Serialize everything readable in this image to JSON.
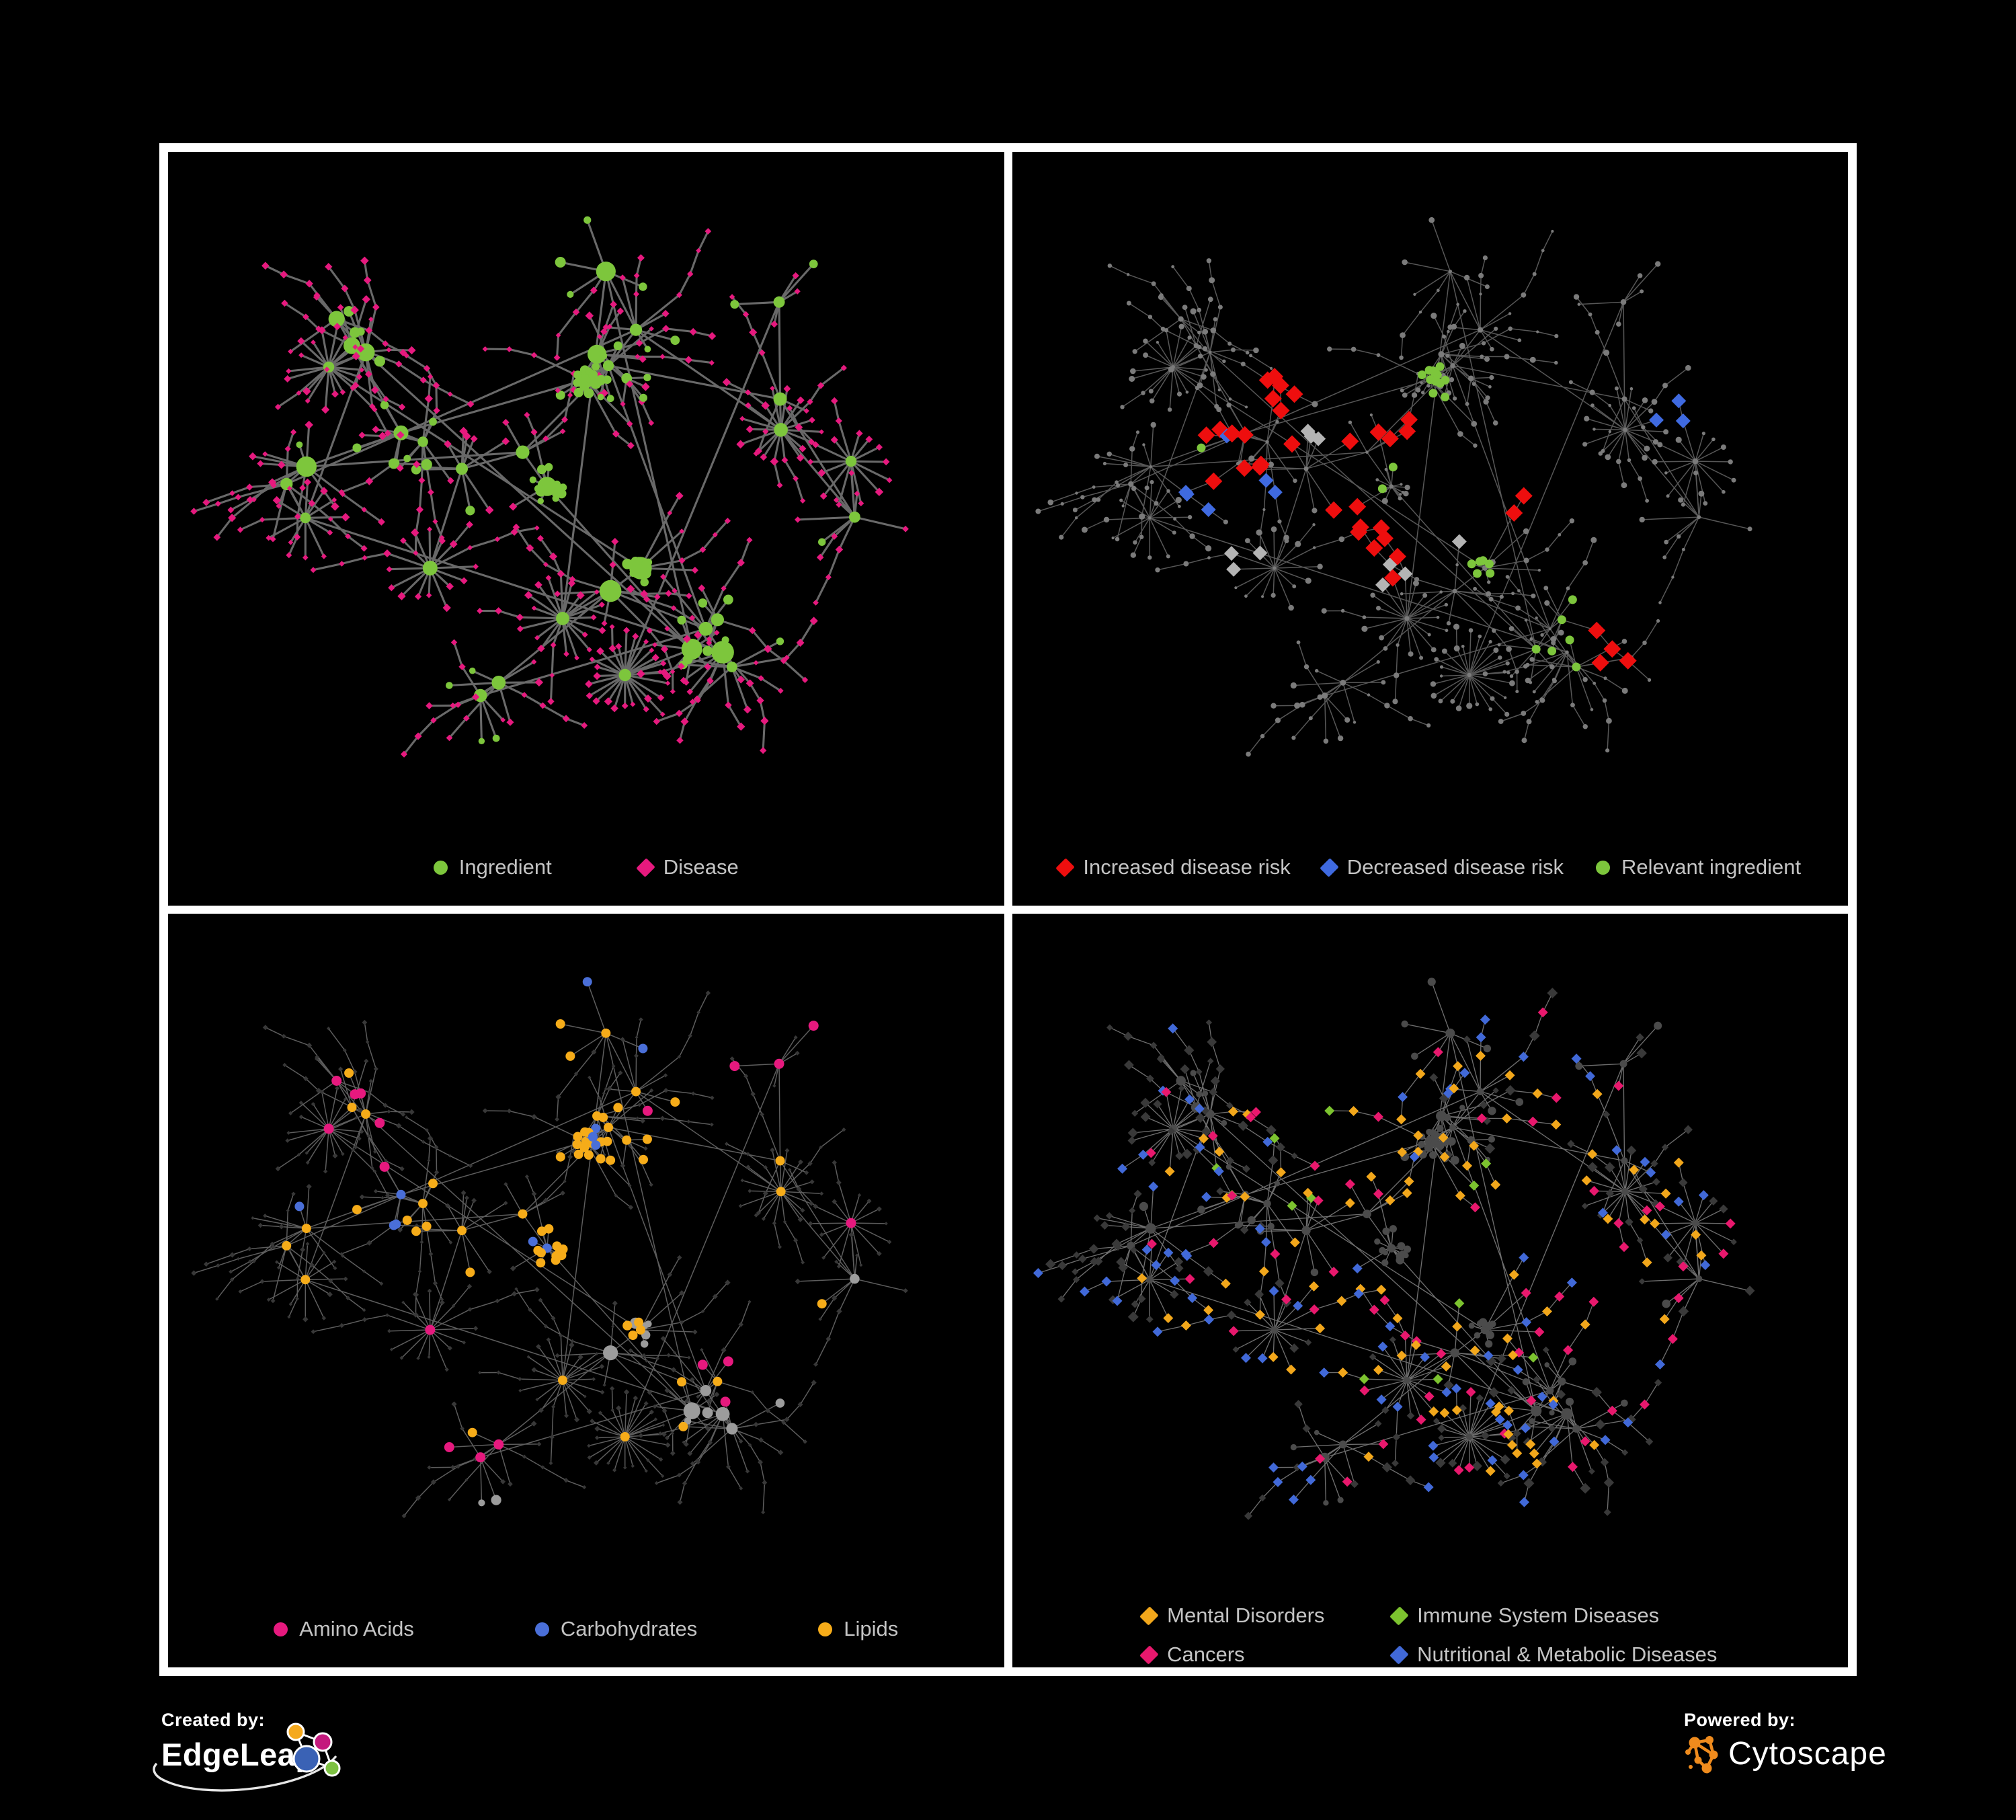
{
  "page": {
    "bg": "#000000"
  },
  "grid": {
    "border_color": "#ffffff",
    "panel_bg": "#000000"
  },
  "legend_text_color": "#c4c4c4",
  "panels": [
    {
      "name": "ingredient-disease",
      "legend": {
        "gap": 130,
        "items": [
          {
            "label": "Ingredient",
            "shape": "circle",
            "color": "#7dc63c"
          },
          {
            "label": "Disease",
            "shape": "diamond",
            "color": "#e6197e"
          }
        ]
      },
      "style": {
        "edge": "#696969",
        "edge_w": 3.1,
        "hub": "#7dc63c",
        "circle": "#7dc63c",
        "diamond": "#e6197e",
        "hub_r": [
          9,
          14
        ],
        "circle_r": 6.2,
        "diamond_s": 4.8
      },
      "highlights": []
    },
    {
      "name": "disease-risk",
      "legend": {
        "gap": 48,
        "items": [
          {
            "label": "Increased disease risk",
            "shape": "diamond",
            "color": "#ee0e0e"
          },
          {
            "label": "Decreased disease risk",
            "shape": "diamond",
            "color": "#3f6ae0"
          },
          {
            "label": "Relevant ingredient",
            "shape": "circle",
            "color": "#7dc63c"
          }
        ]
      },
      "style": {
        "edge": "#575757",
        "edge_w": 1.5,
        "dim_all": "#7b7b7b",
        "dim_r": 2.9
      },
      "highlights": [
        {
          "color": "#ee0e0e",
          "on": "diamond",
          "count": 36,
          "size": 13,
          "centers": [
            [
              0.42,
              0.47,
              0.1
            ],
            [
              0.47,
              0.57,
              0.07
            ],
            [
              0.24,
              0.45,
              0.06
            ],
            [
              0.61,
              0.54,
              0.05
            ],
            [
              0.63,
              0.42,
              0.04
            ],
            [
              0.72,
              0.76,
              0.05
            ],
            [
              0.31,
              0.35,
              0.04
            ]
          ]
        },
        {
          "color": "#3f6ae0",
          "on": "diamond",
          "count": 9,
          "size": 11,
          "centers": [
            [
              0.245,
              0.47,
              0.05
            ],
            [
              0.83,
              0.38,
              0.028
            ]
          ]
        },
        {
          "color": "#b4b4b4",
          "on": "diamond",
          "count": 10,
          "size": 11,
          "centers": [
            [
              0.3,
              0.44,
              0.1
            ],
            [
              0.5,
              0.55,
              0.13
            ],
            [
              0.28,
              0.62,
              0.05
            ]
          ]
        },
        {
          "color": "#7dc63c",
          "on": "circle",
          "count": 27,
          "size": 6.5,
          "centers": [
            [
              0.4,
              0.42,
              0.12
            ],
            [
              0.57,
              0.63,
              0.05
            ],
            [
              0.2,
              0.44,
              0.09
            ],
            [
              0.5,
              0.33,
              0.07
            ],
            [
              0.75,
              0.75,
              0.18
            ]
          ]
        }
      ]
    },
    {
      "name": "ingredient-classes",
      "legend": {
        "gap": 180,
        "items": [
          {
            "label": "Amino Acids",
            "shape": "circle",
            "color": "#e6197e"
          },
          {
            "label": "Carbohydrates",
            "shape": "circle",
            "color": "#4a6fd8"
          },
          {
            "label": "Lipids",
            "shape": "circle",
            "color": "#f6ac19"
          }
        ]
      },
      "style": {
        "edge": "#858585",
        "edge_w": 1.5,
        "edge_o": 0.7,
        "circle": "#9c9c9c",
        "hub": "#9c9c9c",
        "diamond": "#383838",
        "hub_r": [
          7,
          10
        ],
        "circle_r": 6.5,
        "diamond_s": 3.2
      },
      "highlights": [
        {
          "color": "#f6ac19",
          "on": "circle",
          "count": 66,
          "size": 7,
          "centers": [
            [
              0.5,
              0.37,
              0.055
            ],
            [
              0.43,
              0.47,
              0.08
            ],
            [
              0.57,
              0.57,
              0.032
            ],
            [
              0.45,
              0.2,
              0.12
            ],
            [
              0.5,
              0.5,
              0.5
            ]
          ]
        },
        {
          "color": "#e6197e",
          "on": "circle",
          "count": 18,
          "size": 7.5,
          "centers": [
            [
              0.7,
              0.65,
              0.07
            ],
            [
              0.25,
              0.68,
              0.18
            ],
            [
              0.2,
              0.2,
              0.22
            ],
            [
              0.82,
              0.25,
              0.2
            ]
          ]
        },
        {
          "color": "#4a6fd8",
          "on": "circle",
          "count": 13,
          "size": 7,
          "centers": [
            [
              0.5,
              0.38,
              0.045
            ],
            [
              0.7,
              0.56,
              0.03
            ],
            [
              0.06,
              0.25,
              0.03
            ],
            [
              0.3,
              0.28,
              0.25
            ]
          ]
        }
      ]
    },
    {
      "name": "disease-classes",
      "legend": {
        "grid": true,
        "items": [
          {
            "label": "Mental Disorders",
            "shape": "diamond",
            "color": "#f2a71b"
          },
          {
            "label": "Immune System Diseases",
            "shape": "diamond",
            "color": "#7cc32f"
          },
          {
            "label": "Cancers",
            "shape": "diamond",
            "color": "#e8186d"
          },
          {
            "label": "Nutritional & Metabolic Diseases",
            "shape": "diamond",
            "color": "#4169d8"
          }
        ]
      },
      "style": {
        "edge": "#6e6e6e",
        "edge_w": 1.35,
        "circle": "#4b4b4b",
        "hub": "#4b4b4b",
        "diamond": "#393939",
        "hub_r": [
          5.5,
          7
        ],
        "circle_r": 5,
        "diamond_s": 6
      },
      "highlights": [
        {
          "color": "#f2a71b",
          "on": "diamond",
          "count": 90,
          "size": 7.5,
          "centers": [
            [
              0.16,
              0.45,
              0.1
            ],
            [
              0.28,
              0.42,
              0.06
            ],
            [
              0.3,
              0.2,
              0.05
            ],
            [
              0.5,
              0.5,
              0.6
            ]
          ]
        },
        {
          "color": "#e8186d",
          "on": "diamond",
          "count": 62,
          "size": 7.5,
          "centers": [
            [
              0.48,
              0.58,
              0.08
            ],
            [
              0.38,
              0.62,
              0.05
            ],
            [
              0.88,
              0.27,
              0.05
            ],
            [
              0.55,
              0.9,
              0.12
            ],
            [
              0.5,
              0.5,
              0.7
            ]
          ]
        },
        {
          "color": "#4169d8",
          "on": "diamond",
          "count": 84,
          "size": 7.5,
          "centers": [
            [
              0.6,
              0.6,
              0.05
            ],
            [
              0.78,
              0.4,
              0.1
            ],
            [
              0.5,
              0.1,
              0.1
            ],
            [
              0.25,
              0.12,
              0.06
            ],
            [
              0.5,
              0.5,
              0.95
            ]
          ]
        },
        {
          "color": "#7cc32f",
          "on": "diamond",
          "count": 12,
          "size": 7.5,
          "centers": [
            [
              0.45,
              0.5,
              0.4
            ]
          ]
        }
      ]
    }
  ],
  "network": {
    "seed": 1337,
    "hub_count": 26,
    "extra_edges": 14,
    "regions": [
      [
        0.44,
        0.46
      ],
      [
        0.52,
        0.32
      ],
      [
        0.31,
        0.42
      ],
      [
        0.56,
        0.64
      ],
      [
        0.74,
        0.4
      ],
      [
        0.25,
        0.68
      ],
      [
        0.66,
        0.76
      ],
      [
        0.79,
        0.22
      ],
      [
        0.2,
        0.26
      ],
      [
        0.58,
        0.13
      ],
      [
        0.86,
        0.58
      ],
      [
        0.36,
        0.84
      ],
      [
        0.13,
        0.54
      ],
      [
        0.88,
        0.35
      ],
      [
        0.46,
        0.22
      ]
    ],
    "circle_clusters": [
      [
        0.5,
        0.33,
        16,
        26
      ],
      [
        0.45,
        0.5,
        12,
        22
      ],
      [
        0.57,
        0.63,
        9,
        16
      ]
    ],
    "starbursts": [
      [
        0.55,
        0.8,
        24
      ],
      [
        0.75,
        0.41,
        18
      ],
      [
        0.3,
        0.63,
        16
      ],
      [
        0.47,
        0.71,
        20
      ],
      [
        0.14,
        0.55,
        12
      ],
      [
        0.84,
        0.46,
        14
      ],
      [
        0.17,
        0.31,
        18
      ]
    ]
  },
  "footer": {
    "created_by": {
      "label": "Created by:",
      "brand": "EdgeLeap",
      "colors": {
        "orange": "#f5a91d",
        "magenta": "#c4197d",
        "blue": "#3a62b5",
        "green": "#7dc142"
      }
    },
    "powered_by": {
      "label": "Powered by:",
      "brand": "Cytoscape",
      "color": "#ef8b1d"
    }
  }
}
